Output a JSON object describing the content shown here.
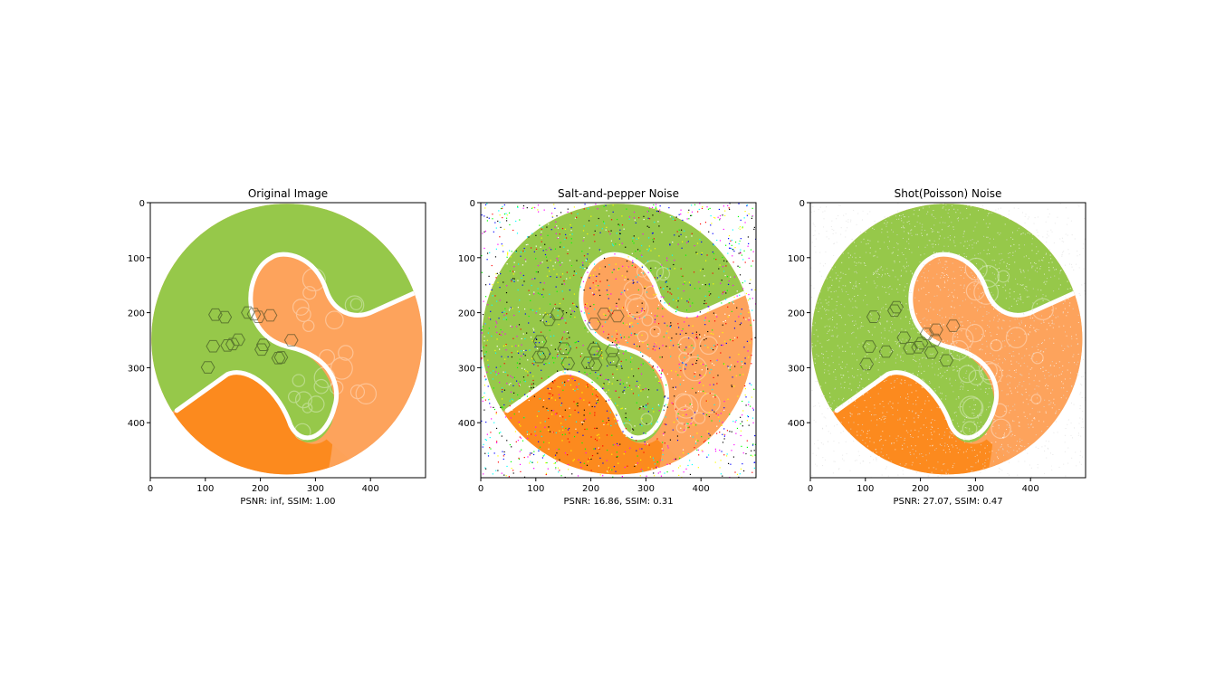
{
  "chart_data": [
    {
      "type": "image",
      "title": "Original Image",
      "xlabel": "PSNR: inf, SSIM: 1.00",
      "xticks": [
        "0",
        "100",
        "200",
        "300",
        "400"
      ],
      "yticks": [
        "0",
        "100",
        "200",
        "300",
        "400"
      ],
      "xlim": [
        0,
        500
      ],
      "ylim": [
        500,
        0
      ],
      "noise": "none"
    },
    {
      "type": "image",
      "title": "Salt-and-pepper Noise",
      "xlabel": "PSNR: 16.86, SSIM: 0.31",
      "xticks": [
        "0",
        "100",
        "200",
        "300",
        "400"
      ],
      "yticks": [
        "0",
        "100",
        "200",
        "300",
        "400"
      ],
      "xlim": [
        0,
        500
      ],
      "ylim": [
        500,
        0
      ],
      "noise": "salt-and-pepper"
    },
    {
      "type": "image",
      "title": "Shot(Poisson) Noise",
      "xlabel": "PSNR: 27.07, SSIM: 0.47",
      "xticks": [
        "0",
        "100",
        "200",
        "300",
        "400"
      ],
      "yticks": [
        "0",
        "100",
        "200",
        "300",
        "400"
      ],
      "xlim": [
        0,
        500
      ],
      "ylim": [
        500,
        0
      ],
      "noise": "poisson"
    }
  ],
  "colors": {
    "green": "#96c84a",
    "orange_light": "#fda35c",
    "orange_dark": "#fc8a1e",
    "white": "#ffffff"
  }
}
